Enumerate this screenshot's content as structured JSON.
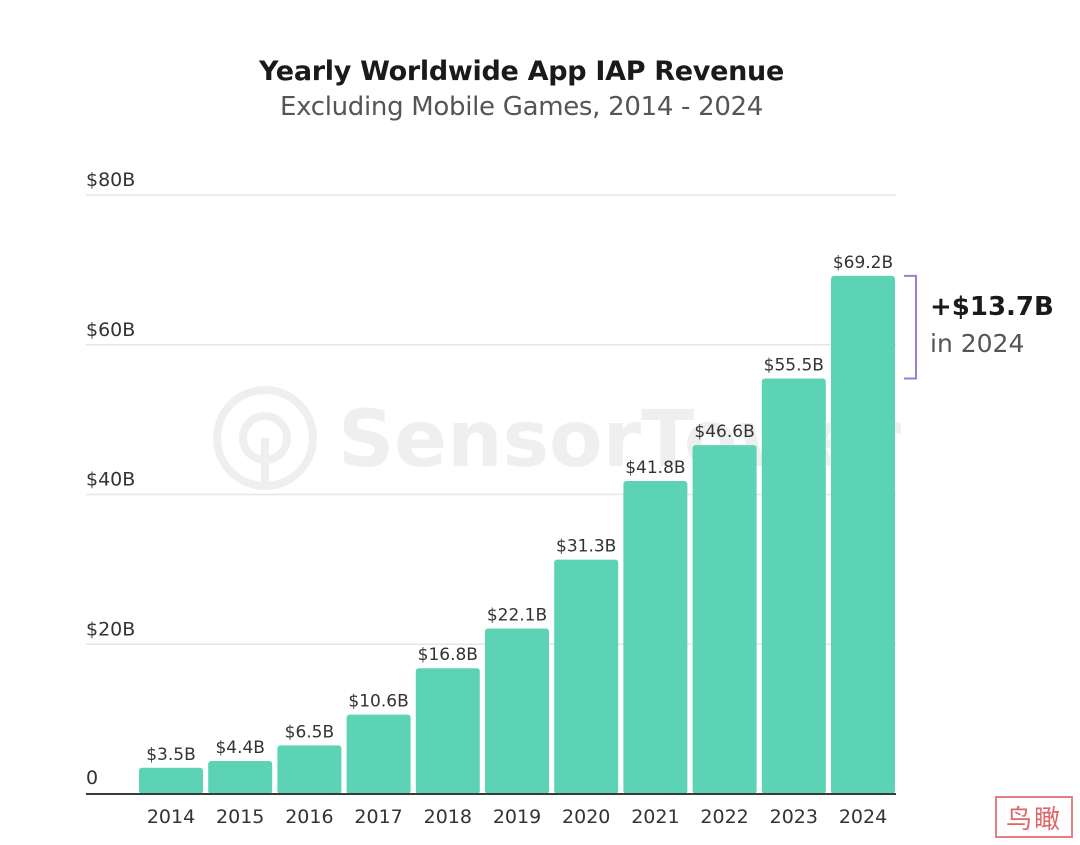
{
  "chart_data": {
    "type": "bar",
    "title": "Yearly Worldwide App IAP Revenue",
    "subtitle": "Excluding Mobile Games, 2014 - 2024",
    "categories": [
      "2014",
      "2015",
      "2016",
      "2017",
      "2018",
      "2019",
      "2020",
      "2021",
      "2022",
      "2023",
      "2024"
    ],
    "values": [
      3.5,
      4.4,
      6.5,
      10.6,
      16.8,
      22.1,
      31.3,
      41.8,
      46.6,
      55.5,
      69.2
    ],
    "value_labels": [
      "$3.5B",
      "$4.4B",
      "$6.5B",
      "$10.6B",
      "$16.8B",
      "$22.1B",
      "$31.3B",
      "$41.8B",
      "$46.6B",
      "$55.5B",
      "$69.2B"
    ],
    "ylim": [
      0,
      80
    ],
    "yticks": [
      0,
      20,
      40,
      60,
      80
    ],
    "ytick_labels": [
      "0",
      "$20B",
      "$40B",
      "$60B",
      "$80B"
    ],
    "xlabel": "",
    "ylabel": "",
    "grid": true,
    "bar_color": "#5dd3b5",
    "bracket_color": "#9b7fd6",
    "annotation": {
      "from_value": 55.5,
      "to_value": 69.2,
      "delta_label": "+$13.7B",
      "sub_label": "in 2024"
    }
  },
  "watermark": "SensorTower",
  "stamp": "鸟瞰"
}
